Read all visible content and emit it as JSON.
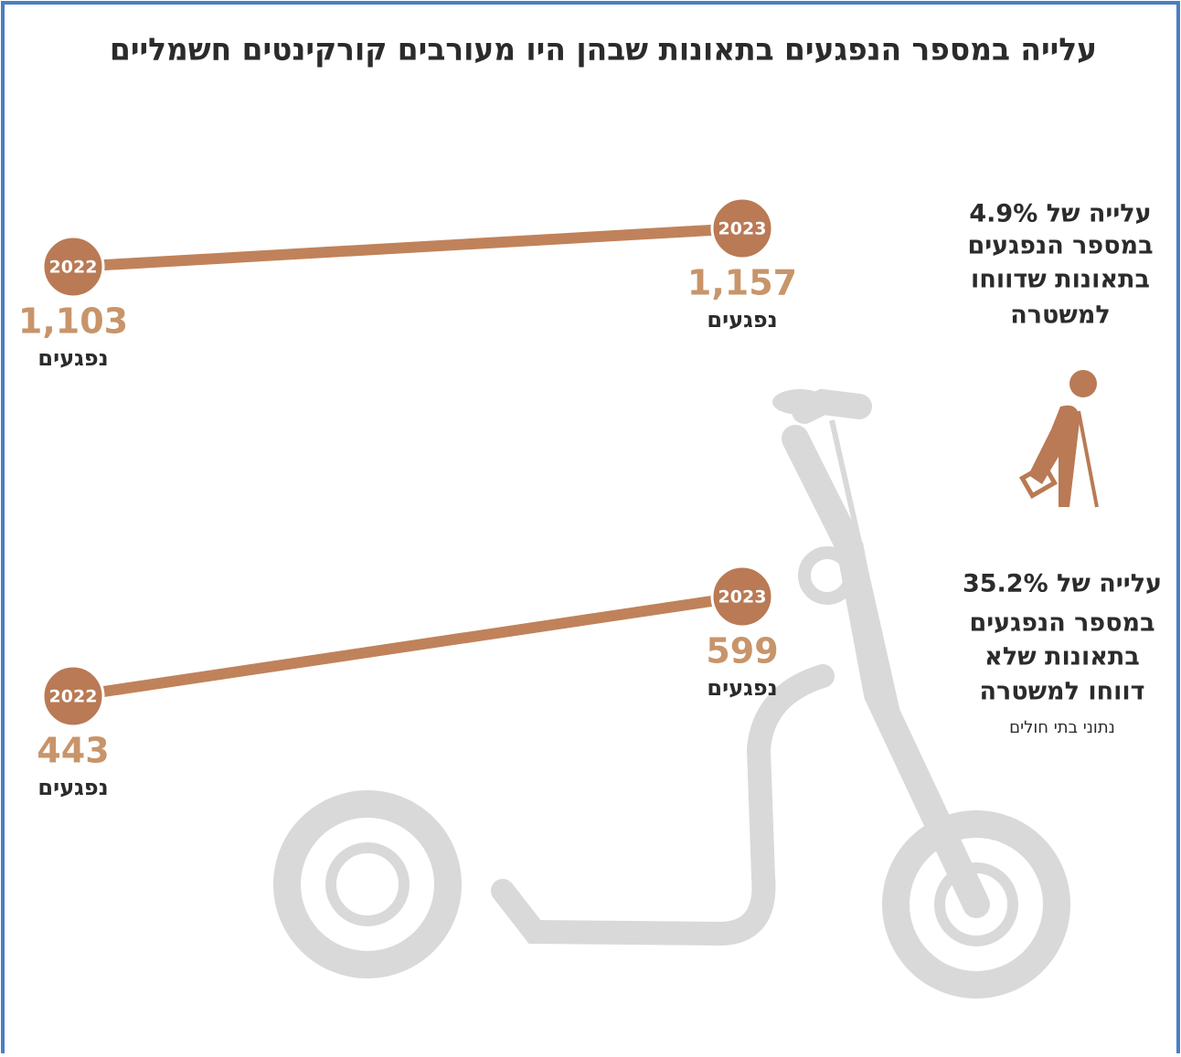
{
  "title": "עלייה במספר הנפגעים בתאונות שבהן היו מעורבים קורקינטים חשמליים",
  "panels": [
    {
      "points": [
        {
          "year": "2022",
          "value": "1,103",
          "unit": "נפגעים"
        },
        {
          "year": "2023",
          "value": "1,157",
          "unit": "נפגעים"
        }
      ],
      "note": [
        "עלייה של 4.9%",
        "במספר הנפגעים",
        "בתאונות שדווחו",
        "למשטרה"
      ]
    },
    {
      "points": [
        {
          "year": "2022",
          "value": "443",
          "unit": "נפגעים"
        },
        {
          "year": "2023",
          "value": "599",
          "unit": "נפגעים"
        }
      ],
      "note": [
        "עלייה של 35.2%",
        "במספר הנפגעים",
        "בתאונות שלא",
        "דווחו למשטרה"
      ],
      "source": "נתוני בתי חולים"
    }
  ]
}
